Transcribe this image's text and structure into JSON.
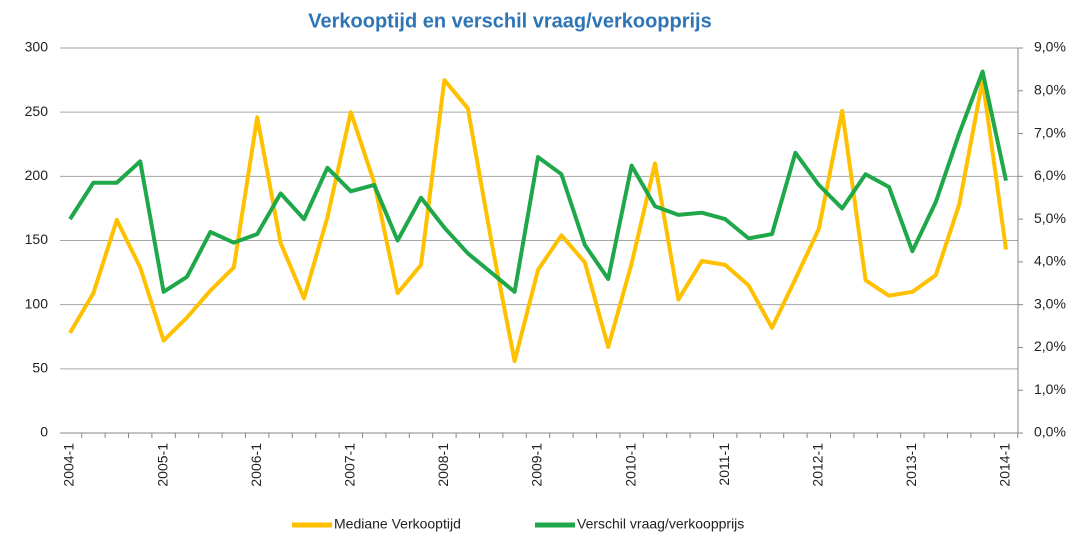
{
  "chart_data": {
    "type": "line",
    "title": "Verkooptijd en verschil vraag/verkoopprijs",
    "categories": [
      "2004-1",
      null,
      null,
      null,
      "2005-1",
      null,
      null,
      null,
      "2006-1",
      null,
      null,
      null,
      "2007-1",
      null,
      null,
      null,
      "2008-1",
      null,
      null,
      null,
      "2009-1",
      null,
      null,
      null,
      "2010-1",
      null,
      null,
      null,
      "2011-1",
      null,
      null,
      null,
      "2012-1",
      null,
      null,
      null,
      "2013-1",
      null,
      null,
      null,
      "2014-1"
    ],
    "series": [
      {
        "name": "Mediane Verkooptijd",
        "color": "#ffc000",
        "values": [
          78,
          109,
          166,
          129,
          72,
          90,
          111,
          129,
          246,
          148,
          105,
          168,
          250,
          195,
          109,
          131,
          275,
          253,
          150,
          56,
          127,
          154,
          133,
          67,
          132,
          210,
          104,
          134,
          131,
          115,
          82,
          120,
          159,
          251,
          119,
          107,
          110,
          123,
          178,
          275,
          143
        ]
      },
      {
        "name": "Verschil vraag/verkoopprijs",
        "color": "#1fa84a",
        "axis": "y2",
        "values": [
          5.0,
          5.85,
          5.85,
          6.35,
          3.3,
          3.65,
          4.7,
          4.45,
          4.65,
          5.6,
          5.0,
          6.2,
          5.65,
          5.8,
          4.5,
          5.5,
          4.8,
          4.2,
          3.75,
          3.3,
          6.45,
          6.05,
          4.4,
          3.6,
          6.25,
          5.3,
          5.1,
          5.15,
          5.0,
          4.55,
          4.65,
          6.55,
          5.8,
          5.25,
          6.05,
          5.75,
          4.25,
          5.4,
          7.0,
          8.45,
          5.9
        ]
      }
    ],
    "ylim": [
      0,
      300
    ],
    "yticks": [
      0,
      50,
      100,
      150,
      200,
      250,
      300
    ],
    "y2lim": [
      0,
      9
    ],
    "y2ticks": [
      {
        "value": 0,
        "label": "0,0%"
      },
      {
        "value": 1,
        "label": "1,0%"
      },
      {
        "value": 2,
        "label": "2,0%"
      },
      {
        "value": 3,
        "label": "3,0%"
      },
      {
        "value": 4,
        "label": "4,0%"
      },
      {
        "value": 5,
        "label": "5,0%"
      },
      {
        "value": 6,
        "label": "6,0%"
      },
      {
        "value": 7,
        "label": "7,0%"
      },
      {
        "value": 8,
        "label": "8,0%"
      },
      {
        "value": 9,
        "label": "9,0%"
      }
    ],
    "grid": true,
    "legend": "bottom"
  }
}
